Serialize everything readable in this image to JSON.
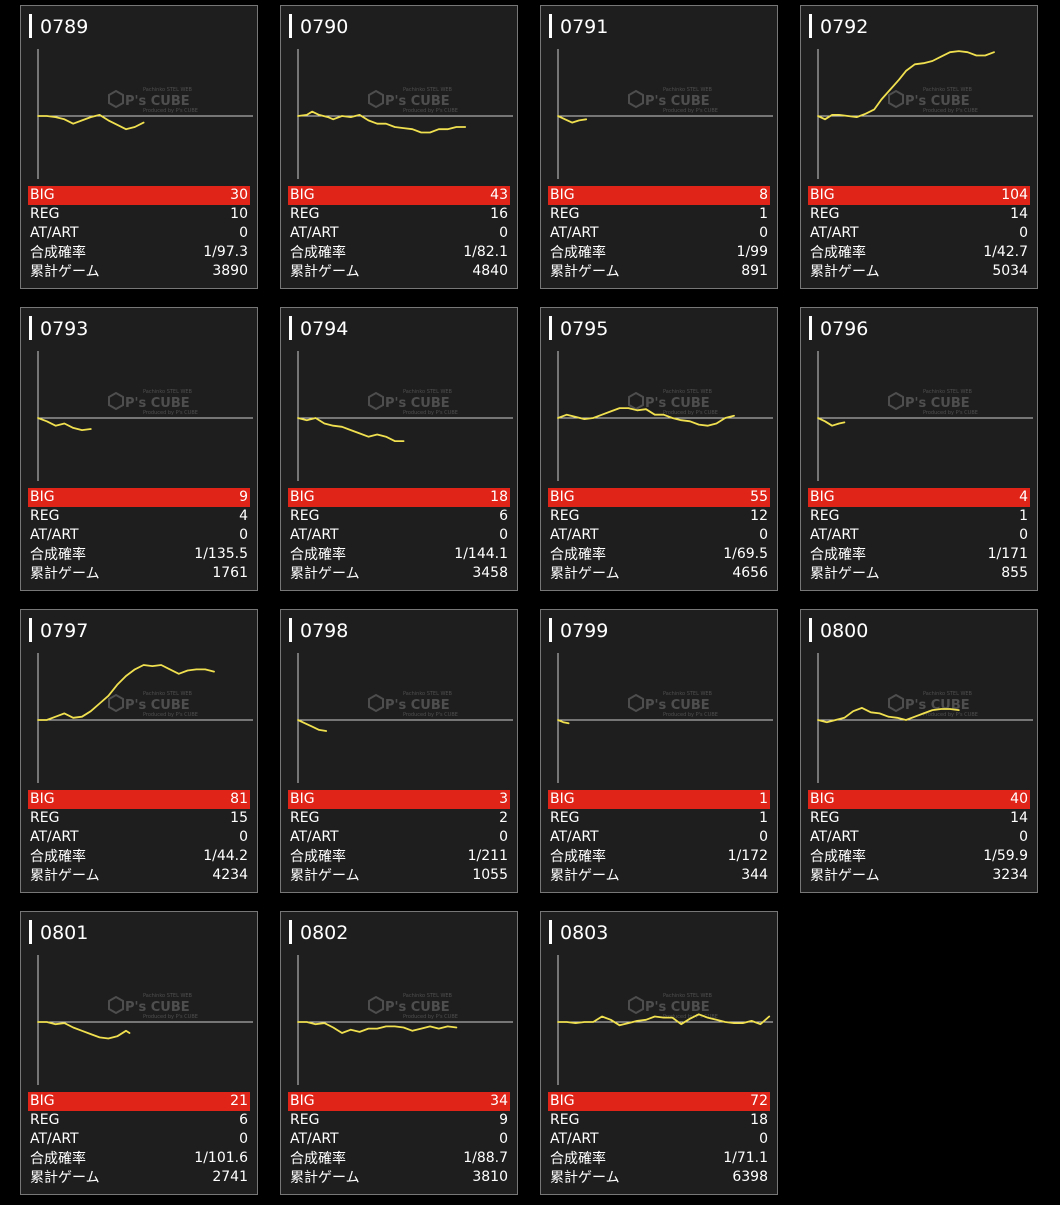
{
  "labels": {
    "big": "BIG",
    "reg": "REG",
    "at": "AT/ART",
    "prob": "合成確率",
    "games": "累計ゲーム"
  },
  "watermark": {
    "logo": "P's CUBE",
    "small_top": "Pachinko STEL WEB",
    "small_bottom": "Produced by P's CUBE"
  },
  "colors": {
    "big_bar": "#e02418",
    "line": "#f0e050",
    "card_bg": "#1e1e1e",
    "border": "#777777"
  },
  "machines": [
    {
      "id": "0789",
      "big": "30",
      "reg": "10",
      "at": "0",
      "prob": "1/97.3",
      "games": "3890",
      "trend": [
        [
          0,
          0
        ],
        [
          0.05,
          0
        ],
        [
          0.1,
          -1
        ],
        [
          0.15,
          -3
        ],
        [
          0.2,
          -7
        ],
        [
          0.25,
          -4
        ],
        [
          0.3,
          -1
        ],
        [
          0.35,
          1
        ],
        [
          0.4,
          -4
        ],
        [
          0.45,
          -8
        ],
        [
          0.5,
          -12
        ],
        [
          0.55,
          -10
        ],
        [
          0.6,
          -6
        ]
      ]
    },
    {
      "id": "0790",
      "big": "43",
      "reg": "16",
      "at": "0",
      "prob": "1/82.1",
      "games": "4840",
      "trend": [
        [
          0,
          0
        ],
        [
          0.05,
          1
        ],
        [
          0.08,
          4
        ],
        [
          0.12,
          1
        ],
        [
          0.17,
          -1
        ],
        [
          0.2,
          -3
        ],
        [
          0.25,
          0
        ],
        [
          0.3,
          -1
        ],
        [
          0.35,
          1
        ],
        [
          0.4,
          -4
        ],
        [
          0.45,
          -7
        ],
        [
          0.5,
          -7
        ],
        [
          0.55,
          -10
        ],
        [
          0.6,
          -11
        ],
        [
          0.65,
          -12
        ],
        [
          0.7,
          -15
        ],
        [
          0.75,
          -15
        ],
        [
          0.8,
          -12
        ],
        [
          0.85,
          -12
        ],
        [
          0.9,
          -10
        ],
        [
          0.95,
          -10
        ]
      ]
    },
    {
      "id": "0791",
      "big": "8",
      "reg": "1",
      "at": "0",
      "prob": "1/99",
      "games": "891",
      "trend": [
        [
          0,
          0
        ],
        [
          0.04,
          -3
        ],
        [
          0.08,
          -6
        ],
        [
          0.12,
          -4
        ],
        [
          0.16,
          -3
        ]
      ]
    },
    {
      "id": "0792",
      "big": "104",
      "reg": "14",
      "at": "0",
      "prob": "1/42.7",
      "games": "5034",
      "trend": [
        [
          0,
          0
        ],
        [
          0.04,
          -3
        ],
        [
          0.08,
          1
        ],
        [
          0.12,
          1
        ],
        [
          0.17,
          0
        ],
        [
          0.22,
          -1
        ],
        [
          0.27,
          2
        ],
        [
          0.32,
          6
        ],
        [
          0.36,
          15
        ],
        [
          0.41,
          24
        ],
        [
          0.46,
          33
        ],
        [
          0.5,
          41
        ],
        [
          0.55,
          47
        ],
        [
          0.6,
          48
        ],
        [
          0.65,
          50
        ],
        [
          0.7,
          54
        ],
        [
          0.75,
          58
        ],
        [
          0.8,
          59
        ],
        [
          0.85,
          58
        ],
        [
          0.9,
          55
        ],
        [
          0.95,
          55
        ],
        [
          1.0,
          58
        ]
      ]
    },
    {
      "id": "0793",
      "big": "9",
      "reg": "4",
      "at": "0",
      "prob": "1/135.5",
      "games": "1761",
      "trend": [
        [
          0,
          0
        ],
        [
          0.05,
          -3
        ],
        [
          0.1,
          -7
        ],
        [
          0.15,
          -5
        ],
        [
          0.2,
          -9
        ],
        [
          0.25,
          -11
        ],
        [
          0.3,
          -10
        ]
      ]
    },
    {
      "id": "0794",
      "big": "18",
      "reg": "6",
      "at": "0",
      "prob": "1/144.1",
      "games": "3458",
      "trend": [
        [
          0,
          0
        ],
        [
          0.05,
          -2
        ],
        [
          0.1,
          0
        ],
        [
          0.15,
          -5
        ],
        [
          0.2,
          -7
        ],
        [
          0.25,
          -8
        ],
        [
          0.3,
          -11
        ],
        [
          0.35,
          -14
        ],
        [
          0.4,
          -17
        ],
        [
          0.45,
          -15
        ],
        [
          0.5,
          -17
        ],
        [
          0.55,
          -21
        ],
        [
          0.6,
          -21
        ]
      ]
    },
    {
      "id": "0795",
      "big": "55",
      "reg": "12",
      "at": "0",
      "prob": "1/69.5",
      "games": "4656",
      "trend": [
        [
          0,
          0
        ],
        [
          0.05,
          3
        ],
        [
          0.1,
          1
        ],
        [
          0.15,
          -1
        ],
        [
          0.2,
          0
        ],
        [
          0.25,
          3
        ],
        [
          0.3,
          6
        ],
        [
          0.35,
          9
        ],
        [
          0.4,
          9
        ],
        [
          0.45,
          7
        ],
        [
          0.5,
          8
        ],
        [
          0.55,
          3
        ],
        [
          0.6,
          3
        ],
        [
          0.65,
          0
        ],
        [
          0.7,
          -2
        ],
        [
          0.75,
          -3
        ],
        [
          0.8,
          -6
        ],
        [
          0.85,
          -7
        ],
        [
          0.9,
          -5
        ],
        [
          0.95,
          0
        ],
        [
          1.0,
          2
        ]
      ]
    },
    {
      "id": "0796",
      "big": "4",
      "reg": "1",
      "at": "0",
      "prob": "1/171",
      "games": "855",
      "trend": [
        [
          0,
          0
        ],
        [
          0.04,
          -3
        ],
        [
          0.08,
          -7
        ],
        [
          0.12,
          -5
        ],
        [
          0.15,
          -4
        ]
      ]
    },
    {
      "id": "0797",
      "big": "81",
      "reg": "15",
      "at": "0",
      "prob": "1/44.2",
      "games": "4234",
      "trend": [
        [
          0,
          0
        ],
        [
          0.05,
          0
        ],
        [
          0.1,
          3
        ],
        [
          0.15,
          6
        ],
        [
          0.2,
          2
        ],
        [
          0.25,
          3
        ],
        [
          0.3,
          8
        ],
        [
          0.35,
          15
        ],
        [
          0.4,
          22
        ],
        [
          0.45,
          32
        ],
        [
          0.5,
          40
        ],
        [
          0.55,
          46
        ],
        [
          0.6,
          50
        ],
        [
          0.65,
          49
        ],
        [
          0.7,
          50
        ],
        [
          0.75,
          46
        ],
        [
          0.8,
          42
        ],
        [
          0.85,
          45
        ],
        [
          0.9,
          46
        ],
        [
          0.95,
          46
        ],
        [
          1.0,
          44
        ]
      ]
    },
    {
      "id": "0798",
      "big": "3",
      "reg": "2",
      "at": "0",
      "prob": "1/211",
      "games": "1055",
      "trend": [
        [
          0,
          0
        ],
        [
          0.04,
          -3
        ],
        [
          0.08,
          -6
        ],
        [
          0.12,
          -9
        ],
        [
          0.16,
          -10
        ]
      ]
    },
    {
      "id": "0799",
      "big": "1",
      "reg": "1",
      "at": "0",
      "prob": "1/172",
      "games": "344",
      "trend": [
        [
          0,
          0
        ],
        [
          0.03,
          -2
        ],
        [
          0.06,
          -3
        ]
      ]
    },
    {
      "id": "0800",
      "big": "40",
      "reg": "14",
      "at": "0",
      "prob": "1/59.9",
      "games": "3234",
      "trend": [
        [
          0,
          0
        ],
        [
          0.05,
          -2
        ],
        [
          0.1,
          0
        ],
        [
          0.15,
          2
        ],
        [
          0.2,
          8
        ],
        [
          0.25,
          11
        ],
        [
          0.3,
          7
        ],
        [
          0.35,
          6
        ],
        [
          0.4,
          3
        ],
        [
          0.45,
          2
        ],
        [
          0.5,
          0
        ],
        [
          0.55,
          3
        ],
        [
          0.6,
          6
        ],
        [
          0.65,
          9
        ],
        [
          0.7,
          10
        ],
        [
          0.75,
          10
        ],
        [
          0.8,
          9
        ]
      ]
    },
    {
      "id": "0801",
      "big": "21",
      "reg": "6",
      "at": "0",
      "prob": "1/101.6",
      "games": "2741",
      "trend": [
        [
          0,
          0
        ],
        [
          0.05,
          0
        ],
        [
          0.1,
          -2
        ],
        [
          0.15,
          -1
        ],
        [
          0.2,
          -5
        ],
        [
          0.25,
          -8
        ],
        [
          0.3,
          -11
        ],
        [
          0.35,
          -14
        ],
        [
          0.4,
          -15
        ],
        [
          0.45,
          -13
        ],
        [
          0.5,
          -8
        ],
        [
          0.52,
          -10
        ]
      ]
    },
    {
      "id": "0802",
      "big": "34",
      "reg": "9",
      "at": "0",
      "prob": "1/88.7",
      "games": "3810",
      "trend": [
        [
          0,
          0
        ],
        [
          0.05,
          0
        ],
        [
          0.1,
          -2
        ],
        [
          0.15,
          -1
        ],
        [
          0.2,
          -5
        ],
        [
          0.25,
          -10
        ],
        [
          0.3,
          -7
        ],
        [
          0.35,
          -9
        ],
        [
          0.4,
          -6
        ],
        [
          0.45,
          -6
        ],
        [
          0.5,
          -4
        ],
        [
          0.55,
          -4
        ],
        [
          0.6,
          -5
        ],
        [
          0.65,
          -8
        ],
        [
          0.7,
          -6
        ],
        [
          0.75,
          -4
        ],
        [
          0.8,
          -6
        ],
        [
          0.85,
          -4
        ],
        [
          0.9,
          -5
        ]
      ]
    },
    {
      "id": "0803",
      "big": "72",
      "reg": "18",
      "at": "0",
      "prob": "1/71.1",
      "games": "6398",
      "trend": [
        [
          0,
          0
        ],
        [
          0.05,
          0
        ],
        [
          0.1,
          -1
        ],
        [
          0.15,
          0
        ],
        [
          0.2,
          0
        ],
        [
          0.25,
          5
        ],
        [
          0.3,
          2
        ],
        [
          0.35,
          -3
        ],
        [
          0.4,
          -1
        ],
        [
          0.45,
          1
        ],
        [
          0.5,
          2
        ],
        [
          0.55,
          5
        ],
        [
          0.6,
          4
        ],
        [
          0.65,
          4
        ],
        [
          0.7,
          -2
        ],
        [
          0.75,
          3
        ],
        [
          0.8,
          7
        ],
        [
          0.85,
          4
        ],
        [
          0.9,
          2
        ],
        [
          0.95,
          0
        ],
        [
          1.0,
          -1
        ],
        [
          1.05,
          -1
        ],
        [
          1.1,
          1
        ],
        [
          1.15,
          -2
        ],
        [
          1.2,
          5
        ]
      ]
    }
  ]
}
